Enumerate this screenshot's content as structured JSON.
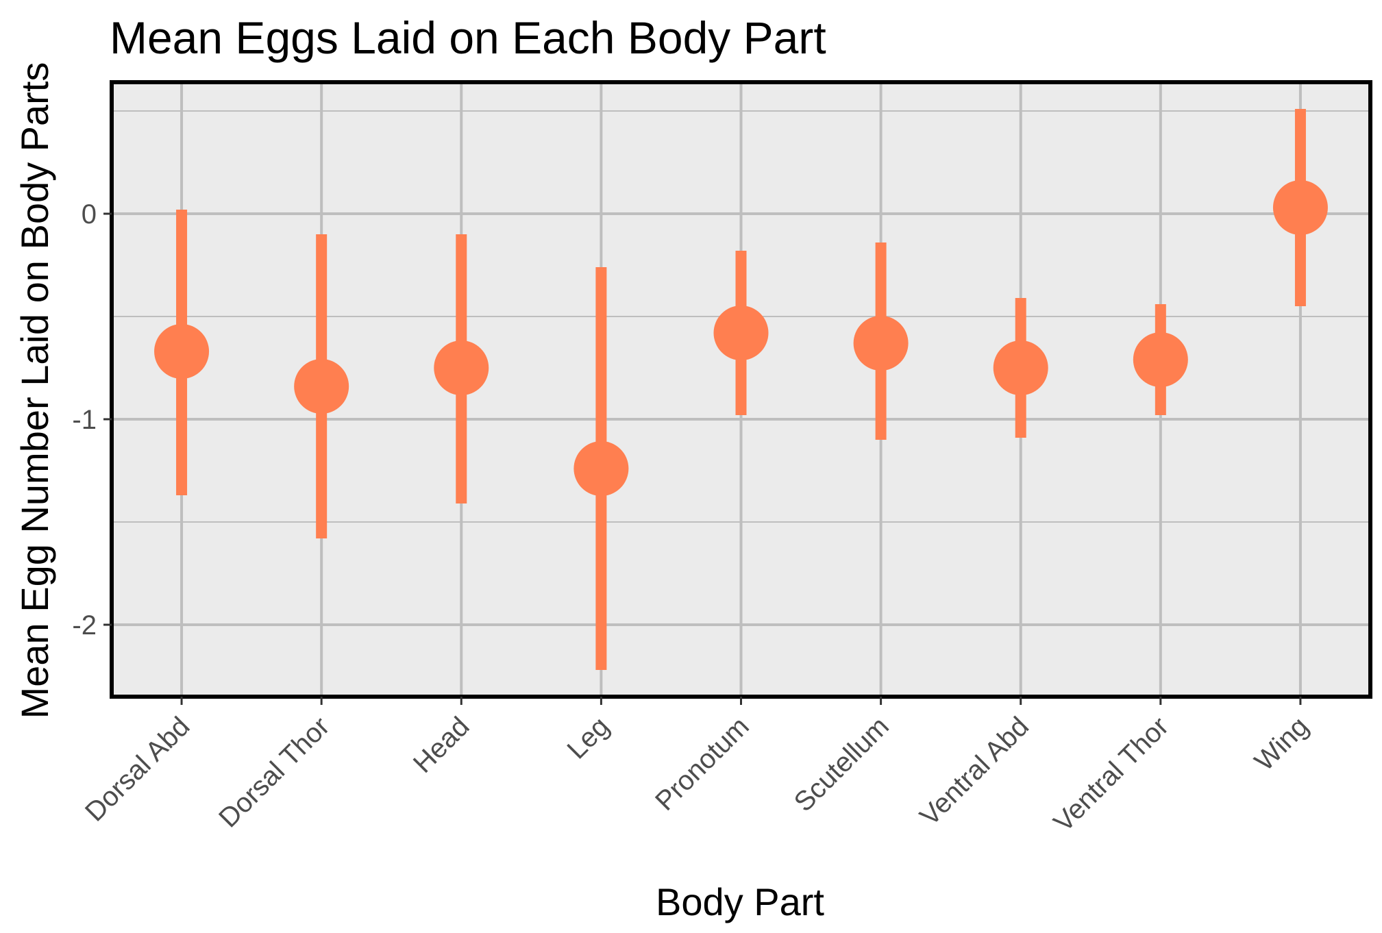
{
  "chart_data": {
    "type": "scatter",
    "title": "Mean Eggs Laid on Each Body Part",
    "xlabel": "Body Part",
    "ylabel": "Mean Egg Number Laid on Body Parts",
    "categories": [
      "Dorsal Abd",
      "Dorsal Thor",
      "Head",
      "Leg",
      "Pronotum",
      "Scutellum",
      "Ventral Abd",
      "Ventral Thor",
      "Wing"
    ],
    "series": [
      {
        "values": [
          -0.67,
          -0.84,
          -0.75,
          -1.24,
          -0.58,
          -0.63,
          -0.75,
          -0.71,
          0.03
        ],
        "lower": [
          -1.37,
          -1.58,
          -1.41,
          -2.22,
          -0.98,
          -1.1,
          -1.09,
          -0.98,
          -0.45
        ],
        "upper": [
          0.02,
          -0.1,
          -0.1,
          -0.26,
          -0.18,
          -0.14,
          -0.41,
          -0.44,
          0.51
        ]
      }
    ],
    "yticks": [
      "0",
      "-1",
      "-2"
    ],
    "ylim": [
      -2.35,
      0.64
    ],
    "grid": true,
    "point_color": "#ff7f50",
    "panel_color": "#ebebeb",
    "grid_color": "#bebebe"
  }
}
